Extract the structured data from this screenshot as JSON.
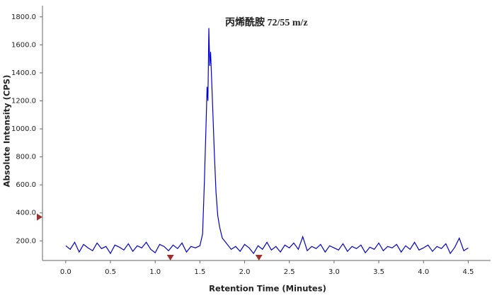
{
  "chart_data": {
    "type": "line",
    "title": "丙烯酰胺 72/55 m/z",
    "x_label": "Retention Time (Minutes)",
    "y_label": "Absolute Intensity (CPS)",
    "xlim": [
      -0.26,
      4.75
    ],
    "ylim": [
      60,
      1880
    ],
    "xticks": [
      {
        "value": 0,
        "label": "0.0"
      },
      0.5,
      {
        "value": 1,
        "label": "1.0"
      },
      1.5,
      {
        "value": 2,
        "label": "2.0"
      },
      2.5,
      {
        "value": 3,
        "label": "3.0"
      },
      3.5,
      {
        "value": 4,
        "label": "4.0"
      },
      4.5
    ],
    "yticks": [
      {
        "value": 200,
        "label": "200.0"
      },
      {
        "value": 400,
        "label": "400.0"
      },
      {
        "value": 600,
        "label": "600.0"
      },
      {
        "value": 800,
        "label": "800.0"
      },
      {
        "value": 1000,
        "label": "1000.0"
      },
      {
        "value": 1200,
        "label": "1200.0"
      },
      {
        "value": 1400,
        "label": "1400.0"
      },
      {
        "value": 1600,
        "label": "1600.0"
      },
      {
        "value": 1800,
        "label": "1800.0"
      }
    ],
    "x_markers": [
      1.17,
      2.16
    ],
    "y_markers": [
      370
    ],
    "marker_color": "#a03030",
    "x": [
      0,
      0.05,
      0.1,
      0.15,
      0.2,
      0.25,
      0.3,
      0.35,
      0.4,
      0.45,
      0.5,
      0.55,
      0.6,
      0.65,
      0.7,
      0.75,
      0.8,
      0.85,
      0.9,
      0.95,
      1,
      1.05,
      1.1,
      1.15,
      1.2,
      1.25,
      1.3,
      1.35,
      1.4,
      1.45,
      1.5,
      1.53,
      1.55,
      1.57,
      1.58,
      1.59,
      1.6,
      1.61,
      1.62,
      1.64,
      1.66,
      1.68,
      1.7,
      1.72,
      1.75,
      1.8,
      1.85,
      1.9,
      1.95,
      2,
      2.05,
      2.1,
      2.15,
      2.2,
      2.25,
      2.3,
      2.35,
      2.4,
      2.45,
      2.5,
      2.55,
      2.6,
      2.65,
      2.7,
      2.75,
      2.8,
      2.85,
      2.9,
      2.95,
      3,
      3.05,
      3.1,
      3.15,
      3.2,
      3.25,
      3.3,
      3.35,
      3.4,
      3.45,
      3.5,
      3.55,
      3.6,
      3.65,
      3.7,
      3.75,
      3.8,
      3.85,
      3.9,
      3.95,
      4,
      4.05,
      4.1,
      4.15,
      4.2,
      4.25,
      4.3,
      4.35,
      4.4,
      4.45,
      4.5
    ],
    "series": [
      {
        "color": "#0000cc",
        "values": [
          165,
          140,
          190,
          120,
          175,
          150,
          130,
          185,
          145,
          160,
          110,
          170,
          155,
          135,
          180,
          125,
          165,
          150,
          190,
          140,
          115,
          175,
          160,
          130,
          170,
          145,
          185,
          120,
          160,
          150,
          165,
          250,
          620,
          1050,
          1300,
          1200,
          1720,
          1450,
          1550,
          1200,
          850,
          550,
          380,
          300,
          220,
          180,
          140,
          160,
          125,
          175,
          150,
          110,
          165,
          140,
          190,
          135,
          160,
          120,
          170,
          150,
          185,
          140,
          230,
          130,
          160,
          145,
          175,
          120,
          165,
          150,
          135,
          180,
          125,
          160,
          145,
          170,
          115,
          155,
          140,
          185,
          130,
          160,
          150,
          175,
          120,
          165,
          140,
          190,
          135,
          150,
          170,
          125,
          160,
          145,
          180,
          110,
          155,
          220,
          130,
          150
        ]
      }
    ]
  }
}
